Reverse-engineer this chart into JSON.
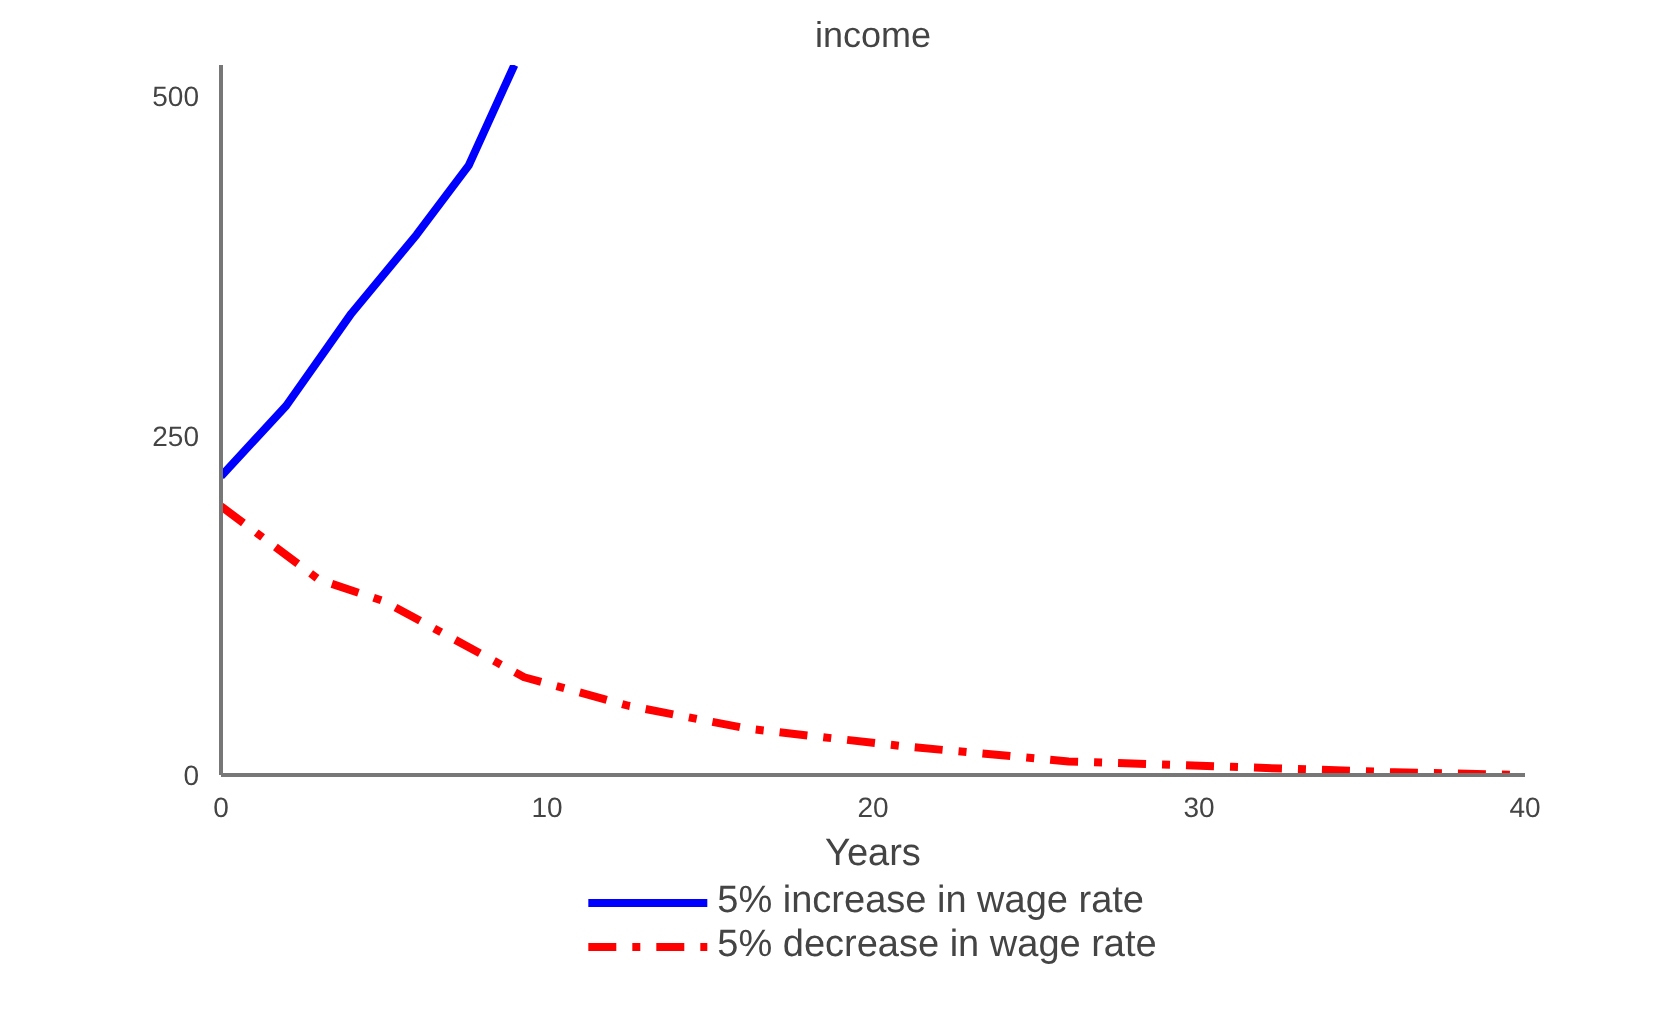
{
  "chart_data": {
    "type": "line",
    "title": "income",
    "xlabel": "Years",
    "xlim": [
      0,
      40
    ],
    "xticks": [
      0,
      10,
      20,
      30,
      40
    ],
    "ylim": [
      0,
      523
    ],
    "yticks": [
      0,
      250,
      500
    ],
    "grid": false,
    "legend": "bottom",
    "series": [
      {
        "name": "5% increase in wage rate",
        "color": "#0000ff",
        "line_style": "solid",
        "x": [
          0,
          2,
          4,
          6,
          7.6,
          9
        ],
        "values": [
          220,
          272,
          340,
          398,
          449,
          523
        ]
      },
      {
        "name": "5% decrease in wage rate",
        "color": "#ff0000",
        "line_style": "dashdot",
        "x": [
          0,
          3,
          5,
          9.3,
          12.5,
          16.2,
          21,
          26,
          31,
          36,
          40
        ],
        "values": [
          198,
          144,
          128,
          72,
          51,
          34,
          21,
          10,
          6,
          2,
          0
        ]
      }
    ]
  }
}
